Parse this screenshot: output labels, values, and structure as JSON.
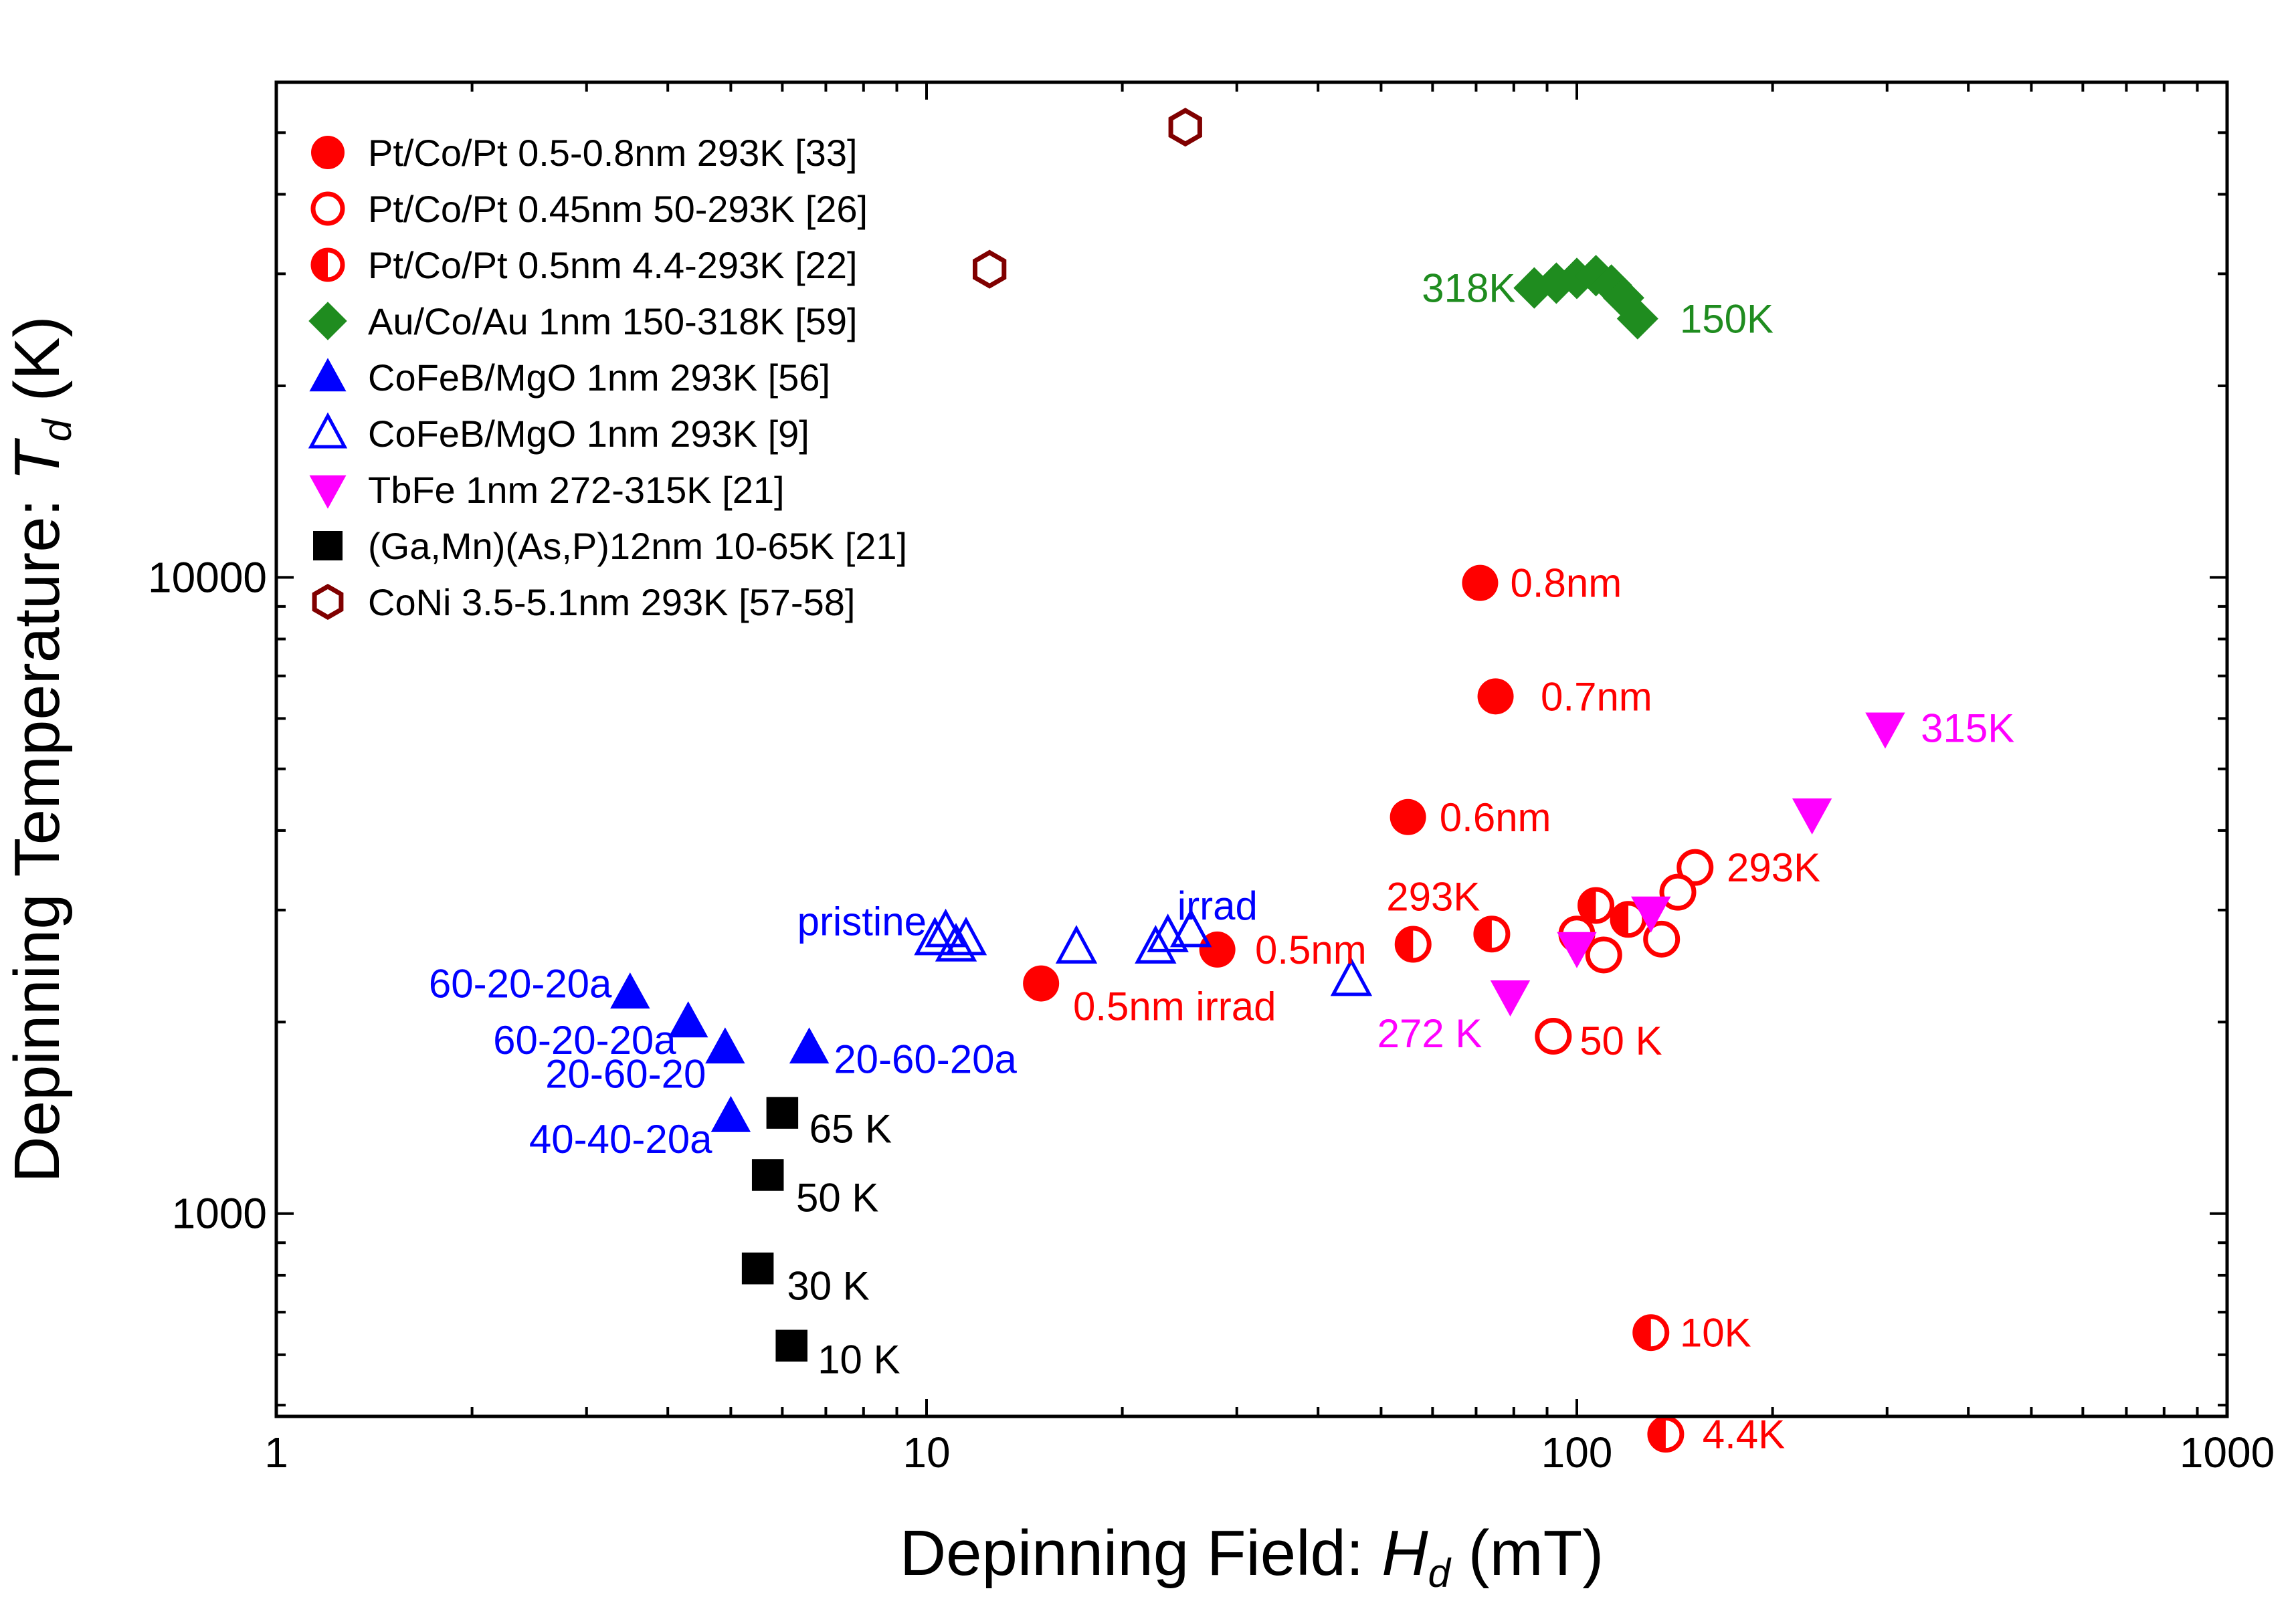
{
  "chart_data": {
    "type": "scatter",
    "xscale": "log",
    "yscale": "log",
    "xlim": [
      1,
      1000
    ],
    "ylim": [
      480,
      60000
    ],
    "x_ticks": [
      {
        "value": 1,
        "label": "1"
      },
      {
        "value": 10,
        "label": "10"
      },
      {
        "value": 100,
        "label": "100"
      },
      {
        "value": 1000,
        "label": "1000"
      }
    ],
    "y_ticks": [
      {
        "value": 1000,
        "label": "1000"
      },
      {
        "value": 10000,
        "label": "10000"
      }
    ],
    "xlabel": {
      "main": "Depinning Field: ",
      "italic": "H",
      "sub": "d",
      "unit": " (mT)"
    },
    "ylabel": {
      "main": "Depinning Temperature: ",
      "italic": "T",
      "sub": "d",
      "unit": " (K)"
    },
    "colors": {
      "red": "#ff0000",
      "green": "#1f8c1f",
      "blue": "#0000ff",
      "magenta": "#ff00ff",
      "black": "#000000",
      "brown": "#800000"
    },
    "series": [
      {
        "name": "Pt/Co/Pt 0.5-0.8nm 293K [33]",
        "marker": "circle-filled",
        "color": "#ff0000",
        "points": [
          {
            "x": 71,
            "y": 9800
          },
          {
            "x": 75,
            "y": 6500
          },
          {
            "x": 55,
            "y": 4200
          },
          {
            "x": 28,
            "y": 2600
          },
          {
            "x": 15,
            "y": 2300
          }
        ]
      },
      {
        "name": "Pt/Co/Pt 0.45nm 50-293K [26]",
        "marker": "circle-open",
        "color": "#ff0000",
        "points": [
          {
            "x": 152,
            "y": 3500
          },
          {
            "x": 143,
            "y": 3200
          },
          {
            "x": 135,
            "y": 2700
          },
          {
            "x": 110,
            "y": 2550
          },
          {
            "x": 100,
            "y": 2750
          },
          {
            "x": 92,
            "y": 1900
          }
        ]
      },
      {
        "name": "Pt/Co/Pt 0.5nm 4.4-293K [22]",
        "marker": "circle-half",
        "color": "#ff0000",
        "points": [
          {
            "x": 56,
            "y": 2650
          },
          {
            "x": 74,
            "y": 2750
          },
          {
            "x": 107,
            "y": 3050
          },
          {
            "x": 120,
            "y": 2900
          },
          {
            "x": 130,
            "y": 650
          },
          {
            "x": 137,
            "y": 450
          }
        ]
      },
      {
        "name": "Au/Co/Au 1nm 150-318K [59]",
        "marker": "diamond-filled",
        "color": "#1f8c1f",
        "points": [
          {
            "x": 86,
            "y": 28500
          },
          {
            "x": 93,
            "y": 29000
          },
          {
            "x": 100,
            "y": 29500
          },
          {
            "x": 107,
            "y": 29800
          },
          {
            "x": 113,
            "y": 28800
          },
          {
            "x": 118,
            "y": 27500
          },
          {
            "x": 124,
            "y": 25500
          }
        ]
      },
      {
        "name": "CoFeB/MgO 1nm 293K [56]",
        "marker": "triangle-up-filled",
        "color": "#0000ff",
        "points": [
          {
            "x": 3.5,
            "y": 2220
          },
          {
            "x": 4.3,
            "y": 2000
          },
          {
            "x": 4.9,
            "y": 1820
          },
          {
            "x": 6.6,
            "y": 1820
          },
          {
            "x": 5.0,
            "y": 1420
          }
        ]
      },
      {
        "name": "CoFeB/MgO 1nm 293K [9]",
        "marker": "triangle-up-open",
        "color": "#0000ff",
        "points": [
          {
            "x": 10.3,
            "y": 2700
          },
          {
            "x": 10.7,
            "y": 2780
          },
          {
            "x": 11.1,
            "y": 2640
          },
          {
            "x": 11.5,
            "y": 2700
          },
          {
            "x": 17,
            "y": 2620
          },
          {
            "x": 22.5,
            "y": 2620
          },
          {
            "x": 23.5,
            "y": 2730
          },
          {
            "x": 25.5,
            "y": 2780
          },
          {
            "x": 45,
            "y": 2330
          }
        ]
      },
      {
        "name": "TbFe 1nm 272-315K [21]",
        "marker": "triangle-down-filled",
        "color": "#ff00ff",
        "points": [
          {
            "x": 79,
            "y": 2200
          },
          {
            "x": 100,
            "y": 2620
          },
          {
            "x": 130,
            "y": 2980
          },
          {
            "x": 230,
            "y": 4250
          },
          {
            "x": 298,
            "y": 5800
          }
        ]
      },
      {
        "name": "(Ga,Mn)(As,P)12nm 10-65K [21]",
        "marker": "square-filled",
        "color": "#000000",
        "points": [
          {
            "x": 6.0,
            "y": 1440
          },
          {
            "x": 5.7,
            "y": 1150
          },
          {
            "x": 5.5,
            "y": 820
          },
          {
            "x": 6.2,
            "y": 620
          }
        ]
      },
      {
        "name": "CoNi 3.5-5.1nm 293K [57-58]",
        "marker": "hexagon-open",
        "color": "#800000",
        "points": [
          {
            "x": 25,
            "y": 51000
          },
          {
            "x": 12.5,
            "y": 30500
          }
        ]
      }
    ],
    "annotations": [
      {
        "text": "318K",
        "x": 80.5,
        "y": 28500,
        "anchor": "end",
        "color": "#1f8c1f"
      },
      {
        "text": "150K",
        "x": 144,
        "y": 25500,
        "anchor": "start",
        "color": "#1f8c1f"
      },
      {
        "text": "0.8nm",
        "x": 79,
        "y": 9800,
        "anchor": "start",
        "color": "#ff0000"
      },
      {
        "text": "0.7nm",
        "x": 88,
        "y": 6500,
        "anchor": "start",
        "color": "#ff0000"
      },
      {
        "text": "315K",
        "x": 338,
        "y": 5800,
        "anchor": "start",
        "color": "#ff00ff"
      },
      {
        "text": "0.6nm",
        "x": 61.5,
        "y": 4200,
        "anchor": "start",
        "color": "#ff0000"
      },
      {
        "text": "293K",
        "x": 170,
        "y": 3500,
        "anchor": "start",
        "color": "#ff0000"
      },
      {
        "text": "293K",
        "x": 71,
        "y": 3150,
        "anchor": "end",
        "color": "#ff0000"
      },
      {
        "text": "0.5nm",
        "x": 32,
        "y": 2600,
        "anchor": "start",
        "color": "#ff0000"
      },
      {
        "text": "0.5nm irrad",
        "x": 16.8,
        "y": 2120,
        "anchor": "start",
        "color": "#ff0000"
      },
      {
        "text": "272 K",
        "x": 71.5,
        "y": 1920,
        "anchor": "end",
        "color": "#ff00ff"
      },
      {
        "text": "50 K",
        "x": 101,
        "y": 1870,
        "anchor": "start",
        "color": "#ff0000"
      },
      {
        "text": "10K",
        "x": 144,
        "y": 650,
        "anchor": "start",
        "color": "#ff0000"
      },
      {
        "text": "4.4K",
        "x": 156,
        "y": 450,
        "anchor": "start",
        "color": "#ff0000"
      },
      {
        "text": "pristine",
        "x": 10,
        "y": 2880,
        "anchor": "end",
        "color": "#0000ff"
      },
      {
        "text": "irrad",
        "x": 24.3,
        "y": 3050,
        "anchor": "start",
        "color": "#0000ff"
      },
      {
        "text": "60-20-20a",
        "x": 3.28,
        "y": 2300,
        "anchor": "end",
        "color": "#0000ff"
      },
      {
        "text": "60-20-20a",
        "x": 4.12,
        "y": 1875,
        "anchor": "end",
        "color": "#0000ff"
      },
      {
        "text": "20-60-20",
        "x": 4.58,
        "y": 1660,
        "anchor": "end",
        "color": "#0000ff"
      },
      {
        "text": "20-60-20a",
        "x": 7.2,
        "y": 1750,
        "anchor": "start",
        "color": "#0000ff"
      },
      {
        "text": "40-40-20a",
        "x": 4.68,
        "y": 1310,
        "anchor": "end",
        "color": "#0000ff"
      },
      {
        "text": "65 K",
        "x": 6.6,
        "y": 1360,
        "anchor": "start",
        "color": "#000000"
      },
      {
        "text": "50 K",
        "x": 6.3,
        "y": 1060,
        "anchor": "start",
        "color": "#000000"
      },
      {
        "text": "30 K",
        "x": 6.1,
        "y": 770,
        "anchor": "start",
        "color": "#000000"
      },
      {
        "text": "10 K",
        "x": 6.8,
        "y": 590,
        "anchor": "start",
        "color": "#000000"
      }
    ],
    "legend": {
      "position": "top-left"
    }
  }
}
